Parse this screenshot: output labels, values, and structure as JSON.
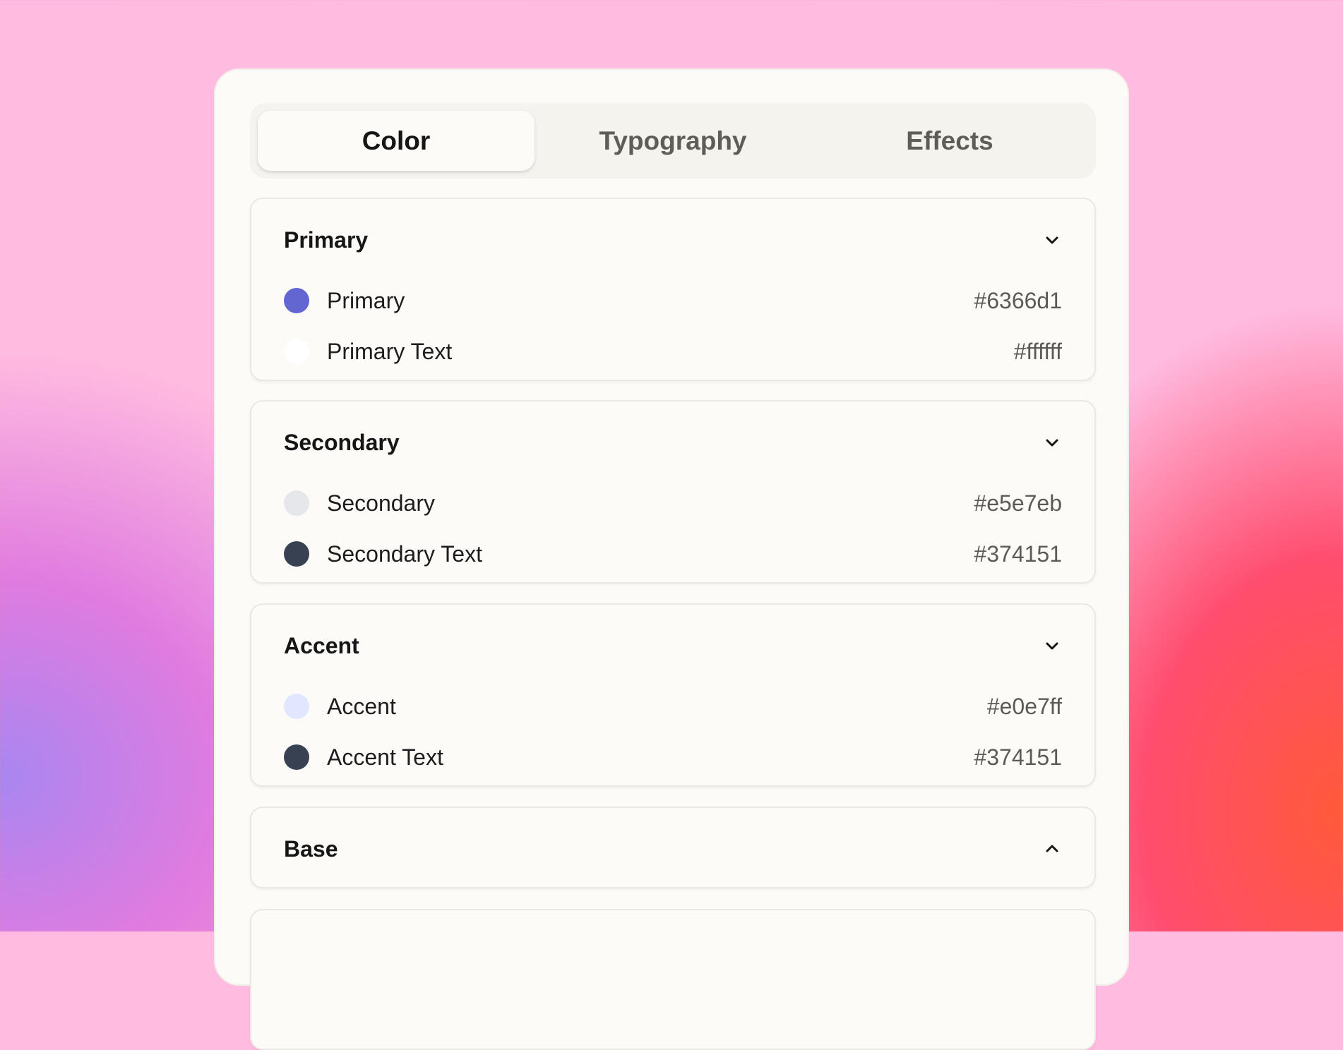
{
  "tabs": [
    {
      "label": "Color",
      "active": true
    },
    {
      "label": "Typography",
      "active": false
    },
    {
      "label": "Effects",
      "active": false
    }
  ],
  "sections": [
    {
      "title": "Primary",
      "expanded": true,
      "chevron": "chevron-down-icon",
      "items": [
        {
          "label": "Primary",
          "hex": "#6366d1",
          "color": "#6366d1"
        },
        {
          "label": "Primary Text",
          "hex": "#ffffff",
          "color": "#ffffff"
        }
      ]
    },
    {
      "title": "Secondary",
      "expanded": true,
      "chevron": "chevron-down-icon",
      "items": [
        {
          "label": "Secondary",
          "hex": "#e5e7eb",
          "color": "#e5e7eb"
        },
        {
          "label": "Secondary Text",
          "hex": "#374151",
          "color": "#374151"
        }
      ]
    },
    {
      "title": "Accent",
      "expanded": true,
      "chevron": "chevron-down-icon",
      "items": [
        {
          "label": "Accent",
          "hex": "#e0e7ff",
          "color": "#e0e7ff"
        },
        {
          "label": "Accent Text",
          "hex": "#374151",
          "color": "#374151"
        }
      ]
    },
    {
      "title": "Base",
      "expanded": false,
      "chevron": "chevron-up-icon",
      "items": []
    }
  ]
}
